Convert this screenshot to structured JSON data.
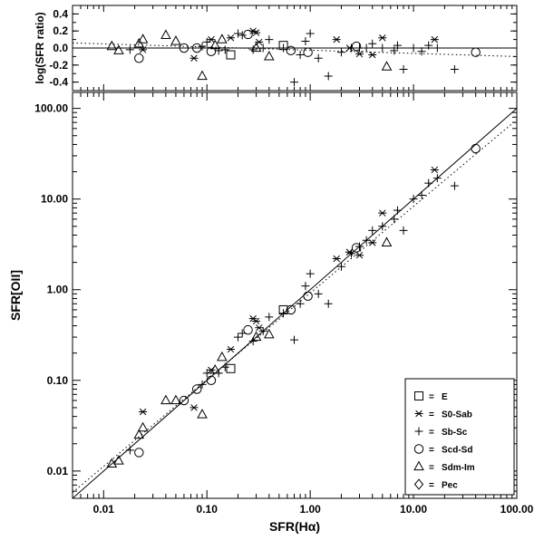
{
  "chart_data": [
    {
      "type": "scatter",
      "panel": "main",
      "xlabel": "SFR(Hα)",
      "ylabel": "SFR[OII]",
      "xscale": "log",
      "yscale": "log",
      "xlim": [
        0.005,
        100
      ],
      "ylim": [
        0.005,
        150
      ],
      "xticks": [
        0.01,
        0.1,
        1,
        10,
        100
      ],
      "yticks": [
        0.01,
        0.1,
        1,
        10,
        100
      ],
      "xtick_labels": [
        "0.01",
        "0.10",
        "1.00",
        "10.00",
        "100.00"
      ],
      "ytick_labels": [
        "0.01",
        "0.10",
        "1.00",
        "10.00",
        "100.00"
      ],
      "legend_position": "bottom-right",
      "lines": [
        {
          "style": "solid",
          "description": "one-to-one",
          "x": [
            0.005,
            100
          ],
          "y": [
            0.005,
            100
          ]
        },
        {
          "style": "dotted",
          "description": "fit",
          "x": [
            0.005,
            100
          ],
          "y": [
            0.0058,
            75
          ]
        }
      ],
      "series": [
        {
          "name": "E",
          "marker": "square",
          "points": [
            [
              0.17,
              0.135
            ],
            [
              0.55,
              0.6
            ]
          ]
        },
        {
          "name": "S0-Sab",
          "marker": "asterisk",
          "points": [
            [
              0.024,
              0.045
            ],
            [
              0.075,
              0.05
            ],
            [
              0.11,
              0.13
            ],
            [
              0.17,
              0.22
            ],
            [
              0.28,
              0.48
            ],
            [
              0.3,
              0.45
            ],
            [
              0.32,
              0.38
            ],
            [
              1.8,
              2.2
            ],
            [
              2.4,
              2.6
            ],
            [
              3.0,
              2.4
            ],
            [
              4.0,
              3.3
            ],
            [
              5.0,
              7.0
            ],
            [
              16,
              21
            ]
          ]
        },
        {
          "name": "Sb-Sc",
          "marker": "plus",
          "points": [
            [
              0.018,
              0.017
            ],
            [
              0.09,
              0.09
            ],
            [
              0.1,
              0.12
            ],
            [
              0.13,
              0.12
            ],
            [
              0.15,
              0.14
            ],
            [
              0.2,
              0.3
            ],
            [
              0.22,
              0.33
            ],
            [
              0.28,
              0.27
            ],
            [
              0.35,
              0.35
            ],
            [
              0.4,
              0.5
            ],
            [
              0.55,
              0.55
            ],
            [
              0.7,
              0.28
            ],
            [
              0.8,
              0.7
            ],
            [
              0.9,
              1.1
            ],
            [
              1.0,
              1.5
            ],
            [
              1.2,
              0.9
            ],
            [
              1.5,
              0.7
            ],
            [
              2.0,
              1.8
            ],
            [
              2.5,
              2.5
            ],
            [
              3.0,
              3.0
            ],
            [
              3.5,
              3.5
            ],
            [
              4.0,
              4.5
            ],
            [
              5.0,
              5.0
            ],
            [
              6.5,
              6.0
            ],
            [
              7.0,
              7.5
            ],
            [
              8.0,
              4.5
            ],
            [
              10,
              10
            ],
            [
              12,
              11
            ],
            [
              14,
              15
            ],
            [
              17,
              17
            ],
            [
              25,
              14
            ]
          ]
        },
        {
          "name": "Scd-Sd",
          "marker": "circle",
          "points": [
            [
              0.022,
              0.016
            ],
            [
              0.06,
              0.06
            ],
            [
              0.08,
              0.08
            ],
            [
              0.11,
              0.1
            ],
            [
              0.25,
              0.36
            ],
            [
              0.65,
              0.6
            ],
            [
              0.95,
              0.85
            ],
            [
              2.8,
              2.9
            ],
            [
              40,
              36
            ]
          ]
        },
        {
          "name": "Sdm-Im",
          "marker": "triangle",
          "points": [
            [
              0.012,
              0.012
            ],
            [
              0.014,
              0.013
            ],
            [
              0.022,
              0.025
            ],
            [
              0.024,
              0.03
            ],
            [
              0.04,
              0.06
            ],
            [
              0.05,
              0.06
            ],
            [
              0.09,
              0.042
            ],
            [
              0.12,
              0.13
            ],
            [
              0.14,
              0.18
            ],
            [
              0.3,
              0.3
            ],
            [
              0.4,
              0.32
            ],
            [
              5.5,
              3.3
            ]
          ]
        },
        {
          "name": "Pec",
          "marker": "diamond",
          "points": []
        }
      ]
    },
    {
      "type": "scatter",
      "panel": "residual",
      "ylabel": "log(SFR ratio)",
      "xscale": "log",
      "xlim": [
        0.005,
        100
      ],
      "ylim": [
        -0.5,
        0.5
      ],
      "yticks": [
        -0.4,
        -0.2,
        0.0,
        0.2,
        0.4
      ],
      "ytick_labels": [
        "-0.4",
        "-0.2",
        "0.0",
        "0.2",
        "0.4"
      ],
      "lines": [
        {
          "style": "solid",
          "description": "zero",
          "x": [
            0.005,
            100
          ],
          "y": [
            0,
            0
          ]
        },
        {
          "style": "dotted",
          "description": "fit",
          "x": [
            0.005,
            100
          ],
          "y": [
            0.06,
            -0.1
          ]
        }
      ],
      "series": [
        {
          "name": "E",
          "marker": "square",
          "points": [
            [
              0.17,
              -0.08
            ],
            [
              0.55,
              0.03
            ]
          ]
        },
        {
          "name": "S0-Sab",
          "marker": "asterisk",
          "points": [
            [
              0.024,
              -0.02
            ],
            [
              0.075,
              -0.12
            ],
            [
              0.11,
              0.1
            ],
            [
              0.17,
              0.12
            ],
            [
              0.28,
              0.2
            ],
            [
              0.3,
              0.18
            ],
            [
              0.32,
              0.07
            ],
            [
              1.8,
              0.1
            ],
            [
              2.4,
              0.0
            ],
            [
              3.0,
              -0.07
            ],
            [
              4.0,
              -0.08
            ],
            [
              5.0,
              0.12
            ],
            [
              16,
              0.1
            ]
          ]
        },
        {
          "name": "Sb-Sc",
          "marker": "plus",
          "points": [
            [
              0.018,
              -0.02
            ],
            [
              0.09,
              0.02
            ],
            [
              0.1,
              0.07
            ],
            [
              0.13,
              -0.03
            ],
            [
              0.15,
              -0.02
            ],
            [
              0.2,
              0.17
            ],
            [
              0.22,
              0.15
            ],
            [
              0.28,
              -0.02
            ],
            [
              0.35,
              0.0
            ],
            [
              0.4,
              0.1
            ],
            [
              0.55,
              0.0
            ],
            [
              0.7,
              -0.4
            ],
            [
              0.8,
              -0.08
            ],
            [
              0.9,
              0.08
            ],
            [
              1.0,
              0.17
            ],
            [
              1.2,
              -0.12
            ],
            [
              1.5,
              -0.33
            ],
            [
              2.0,
              -0.05
            ],
            [
              2.5,
              0.0
            ],
            [
              3.0,
              0.0
            ],
            [
              3.5,
              0.0
            ],
            [
              4.0,
              0.05
            ],
            [
              5.0,
              0.0
            ],
            [
              6.5,
              -0.03
            ],
            [
              7.0,
              0.03
            ],
            [
              8.0,
              -0.25
            ],
            [
              10,
              0.0
            ],
            [
              12,
              -0.04
            ],
            [
              14,
              0.03
            ],
            [
              17,
              0.0
            ],
            [
              25,
              -0.25
            ]
          ]
        },
        {
          "name": "Scd-Sd",
          "marker": "circle",
          "points": [
            [
              0.022,
              -0.12
            ],
            [
              0.06,
              0.0
            ],
            [
              0.08,
              0.0
            ],
            [
              0.11,
              -0.04
            ],
            [
              0.25,
              0.16
            ],
            [
              0.65,
              -0.03
            ],
            [
              0.95,
              -0.05
            ],
            [
              2.8,
              0.02
            ],
            [
              40,
              -0.05
            ]
          ]
        },
        {
          "name": "Sdm-Im",
          "marker": "triangle",
          "points": [
            [
              0.012,
              0.02
            ],
            [
              0.014,
              -0.03
            ],
            [
              0.022,
              0.05
            ],
            [
              0.024,
              0.1
            ],
            [
              0.04,
              0.15
            ],
            [
              0.05,
              0.08
            ],
            [
              0.09,
              -0.33
            ],
            [
              0.12,
              0.03
            ],
            [
              0.14,
              0.1
            ],
            [
              0.3,
              0.0
            ],
            [
              0.4,
              -0.1
            ],
            [
              5.5,
              -0.22
            ]
          ]
        },
        {
          "name": "Pec",
          "marker": "diamond",
          "points": []
        }
      ]
    }
  ]
}
